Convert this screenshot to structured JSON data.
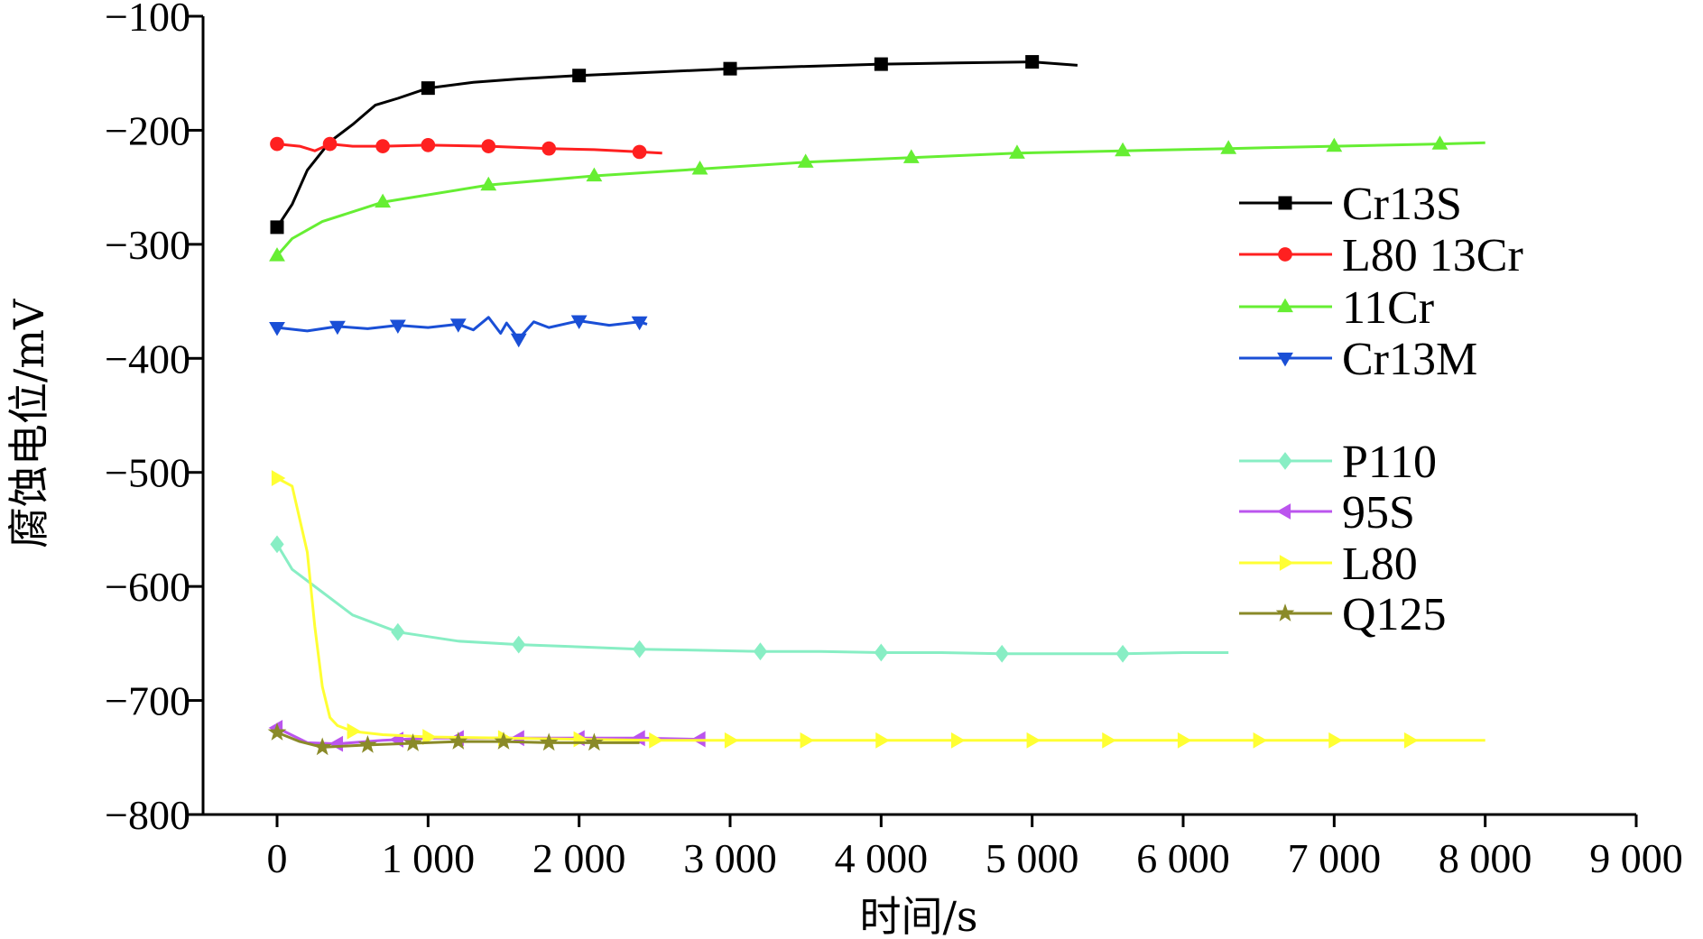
{
  "chart_data": {
    "type": "line",
    "xlabel": "时间/s",
    "ylabel": "腐蚀电位/mV",
    "xlim": [
      -500,
      9000
    ],
    "ylim": [
      -800,
      -100
    ],
    "xticks": [
      0,
      1000,
      2000,
      3000,
      4000,
      5000,
      6000,
      7000,
      8000,
      9000
    ],
    "xtick_labels": [
      "0",
      "1 000",
      "2 000",
      "3 000",
      "4 000",
      "5 000",
      "6 000",
      "7 000",
      "8 000",
      "9 000"
    ],
    "yticks": [
      -100,
      -200,
      -300,
      -400,
      -500,
      -600,
      -700,
      -800
    ],
    "ytick_labels": [
      "−100",
      "−200",
      "−300",
      "−400",
      "−500",
      "−600",
      "−700",
      "−800"
    ],
    "grid": false,
    "legend": "right",
    "series": [
      {
        "name": "Cr13S",
        "color": "#000000",
        "marker": "square",
        "x": [
          0,
          100,
          200,
          350,
          500,
          650,
          800,
          1000,
          1300,
          1600,
          2000,
          2500,
          3000,
          3500,
          4000,
          4500,
          5000,
          5300
        ],
        "y": [
          -285,
          -265,
          -235,
          -210,
          -195,
          -178,
          -172,
          -163,
          -158,
          -155,
          -152,
          -149,
          -146,
          -144,
          -142,
          -141,
          -140,
          -143
        ],
        "marker_x": [
          0,
          1000,
          2000,
          3000,
          4000,
          5000
        ]
      },
      {
        "name": "L80 13Cr",
        "color": "#ff2020",
        "marker": "circle",
        "x": [
          0,
          150,
          250,
          350,
          500,
          700,
          1000,
          1400,
          1800,
          2100,
          2400,
          2550
        ],
        "y": [
          -212,
          -214,
          -218,
          -212,
          -214,
          -214,
          -213,
          -214,
          -216,
          -217,
          -219,
          -220
        ],
        "marker_x": [
          0,
          350,
          700,
          1000,
          1400,
          1800,
          2400
        ]
      },
      {
        "name": "11Cr",
        "color": "#66ee33",
        "marker": "triangle-up",
        "x": [
          0,
          100,
          300,
          700,
          1400,
          2100,
          2800,
          3500,
          4200,
          4900,
          5600,
          6300,
          7000,
          7700,
          8000
        ],
        "y": [
          -310,
          -295,
          -280,
          -263,
          -248,
          -240,
          -234,
          -228,
          -224,
          -220,
          -218,
          -216,
          -214,
          -212,
          -211
        ],
        "marker_x": [
          0,
          700,
          1400,
          2100,
          2800,
          3500,
          4200,
          4900,
          5600,
          6300,
          7000,
          7700
        ]
      },
      {
        "name": "Cr13M",
        "color": "#1a4fd6",
        "marker": "triangle-down",
        "x": [
          0,
          200,
          400,
          600,
          800,
          1000,
          1200,
          1300,
          1400,
          1480,
          1520,
          1600,
          1700,
          1800,
          2000,
          2200,
          2400,
          2450
        ],
        "y": [
          -373,
          -376,
          -372,
          -374,
          -371,
          -373,
          -370,
          -375,
          -364,
          -378,
          -369,
          -383,
          -368,
          -373,
          -367,
          -371,
          -368,
          -370
        ],
        "marker_x": [
          0,
          400,
          800,
          1200,
          1600,
          2000,
          2400
        ]
      },
      {
        "name": "P110",
        "color": "#88eec4",
        "marker": "diamond",
        "x": [
          0,
          100,
          300,
          500,
          800,
          1200,
          1600,
          2000,
          2400,
          2800,
          3200,
          3600,
          4000,
          4400,
          4800,
          5200,
          5600,
          6000,
          6300
        ],
        "y": [
          -563,
          -585,
          -605,
          -625,
          -640,
          -648,
          -651,
          -653,
          -655,
          -656,
          -657,
          -657,
          -658,
          -658,
          -659,
          -659,
          -659,
          -658,
          -658
        ],
        "marker_x": [
          0,
          800,
          1600,
          2400,
          3200,
          4000,
          4800,
          5600
        ]
      },
      {
        "name": "95S",
        "color": "#bb55ee",
        "marker": "triangle-left",
        "x": [
          0,
          200,
          400,
          700,
          1000,
          1300,
          1600,
          2000,
          2400,
          2800
        ],
        "y": [
          -724,
          -737,
          -738,
          -735,
          -733,
          -733,
          -733,
          -733,
          -733,
          -734
        ],
        "marker_x": [
          0,
          400,
          800,
          1200,
          1600,
          2000,
          2400,
          2800
        ]
      },
      {
        "name": "L80",
        "color": "#ffff33",
        "marker": "triangle-right",
        "x": [
          0,
          100,
          200,
          250,
          300,
          350,
          400,
          500,
          700,
          1000,
          1500,
          2000,
          2500,
          3000,
          4000,
          5000,
          6000,
          7000,
          8000
        ],
        "y": [
          -505,
          -512,
          -570,
          -635,
          -688,
          -715,
          -722,
          -727,
          -730,
          -732,
          -733,
          -734,
          -735,
          -735,
          -735,
          -735,
          -735,
          -735,
          -735
        ],
        "marker_x": [
          0,
          500,
          1000,
          1500,
          2000,
          2500,
          3000,
          3500,
          4000,
          4500,
          5000,
          5500,
          6000,
          6500,
          7000,
          7500
        ]
      },
      {
        "name": "Q125",
        "color": "#8a8a28",
        "marker": "star",
        "x": [
          0,
          150,
          300,
          450,
          600,
          800,
          1000,
          1200,
          1500,
          1800,
          2100,
          2400
        ],
        "y": [
          -728,
          -736,
          -741,
          -740,
          -739,
          -738,
          -737,
          -736,
          -736,
          -737,
          -737,
          -737
        ],
        "marker_x": [
          0,
          300,
          600,
          900,
          1200,
          1500,
          1800,
          2100
        ]
      }
    ]
  }
}
